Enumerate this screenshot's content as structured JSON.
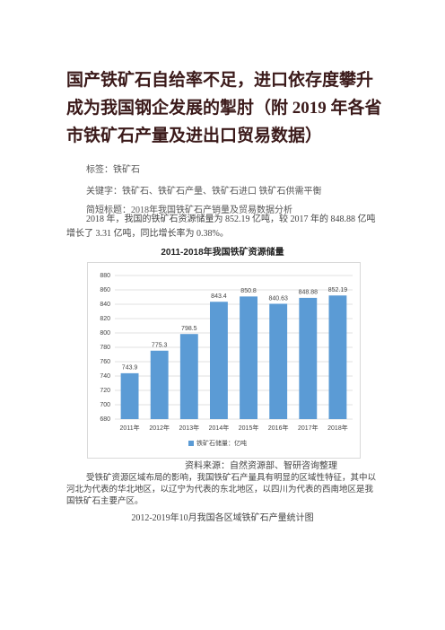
{
  "title": "国产铁矿石自给率不足，进口依存度攀升成为我国钢企发展的掣肘（附 2019 年各省市铁矿石产量及进出口贸易数据）",
  "tags": "标签：铁矿石",
  "keywords": "关键字：铁矿石、铁矿石产量、铁矿石进口   铁矿石供需平衡",
  "short_title": "简短标题：2018年我国铁矿石产销量及贸易数据分析",
  "paragraph1": "2018 年，我国的铁矿石资源储量为 852.19 亿吨，较 2017 年的 848.88 亿吨增长了 3.31 亿吨，同比增长率为 0.38%。",
  "chart_data": {
    "type": "bar",
    "title": "2011-2018年我国铁矿资源储量",
    "categories": [
      "2011年",
      "2012年",
      "2013年",
      "2014年",
      "2015年",
      "2016年",
      "2017年",
      "2018年"
    ],
    "series": [
      {
        "name": "铁矿石储量：亿吨",
        "color": "#5b9bd5",
        "values": [
          743.9,
          775.3,
          798.5,
          843.4,
          850.8,
          840.63,
          848.88,
          852.19
        ]
      }
    ],
    "ylim": [
      680,
      880
    ],
    "yticks": [
      680,
      700,
      720,
      740,
      760,
      780,
      800,
      820,
      840,
      860,
      880
    ],
    "grid": true,
    "legend": "bottom"
  },
  "source": "资料来源：自然资源部、智研咨询整理",
  "paragraph2": "受铁矿资源区域布局的影响，我国铁矿石产量具有明显的区域性特征，其中以河北为代表的华北地区，以辽宁为代表的东北地区，以四川为代表的西南地区是我国铁矿石主要产区。",
  "caption2": "2012-2019年10月我国各区域铁矿石产量统计图"
}
